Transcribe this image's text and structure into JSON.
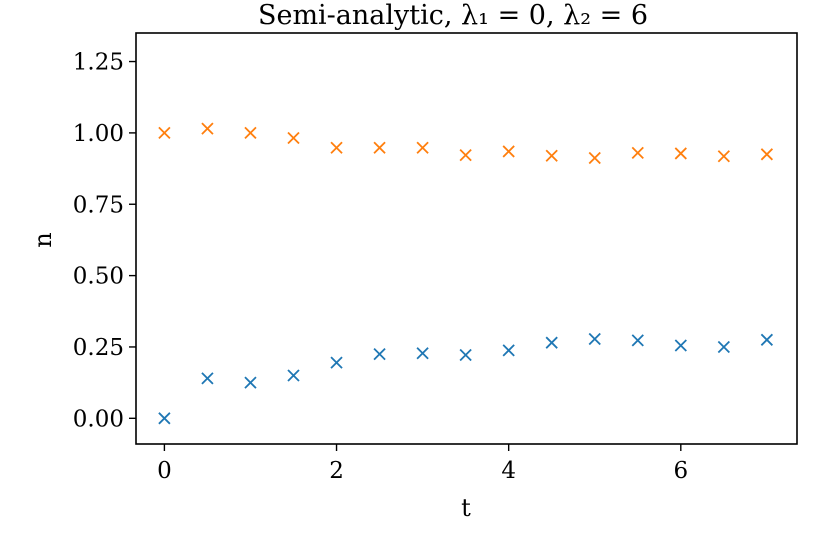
{
  "chart_data": {
    "type": "scatter",
    "title": "Semi-analytic, λ₁ = 0, λ₂ = 6",
    "xlabel": "t",
    "ylabel": "n",
    "xlim": [
      -0.33,
      7.35
    ],
    "ylim": [
      -0.09,
      1.35
    ],
    "x_ticks": [
      {
        "value": 0,
        "label": "0"
      },
      {
        "value": 2,
        "label": "2"
      },
      {
        "value": 4,
        "label": "4"
      },
      {
        "value": 6,
        "label": "6"
      }
    ],
    "y_ticks": [
      {
        "value": 0.0,
        "label": "0.00"
      },
      {
        "value": 0.25,
        "label": "0.25"
      },
      {
        "value": 0.5,
        "label": "0.50"
      },
      {
        "value": 0.75,
        "label": "0.75"
      },
      {
        "value": 1.0,
        "label": "1.00"
      },
      {
        "value": 1.25,
        "label": "1.25"
      }
    ],
    "grid": false,
    "marker": "x",
    "x": [
      0,
      0.5,
      1,
      1.5,
      2,
      2.5,
      3,
      3.5,
      4,
      4.5,
      5,
      5.5,
      6,
      6.5,
      7
    ],
    "series": [
      {
        "color": "#1f77b4",
        "values": [
          0.0,
          0.14,
          0.125,
          0.15,
          0.195,
          0.225,
          0.228,
          0.222,
          0.238,
          0.265,
          0.278,
          0.273,
          0.255,
          0.25,
          0.275
        ]
      },
      {
        "color": "#ff7f0e",
        "values": [
          1.0,
          1.015,
          1.0,
          0.982,
          0.948,
          0.948,
          0.948,
          0.922,
          0.935,
          0.92,
          0.912,
          0.93,
          0.928,
          0.918,
          0.925
        ]
      }
    ]
  }
}
